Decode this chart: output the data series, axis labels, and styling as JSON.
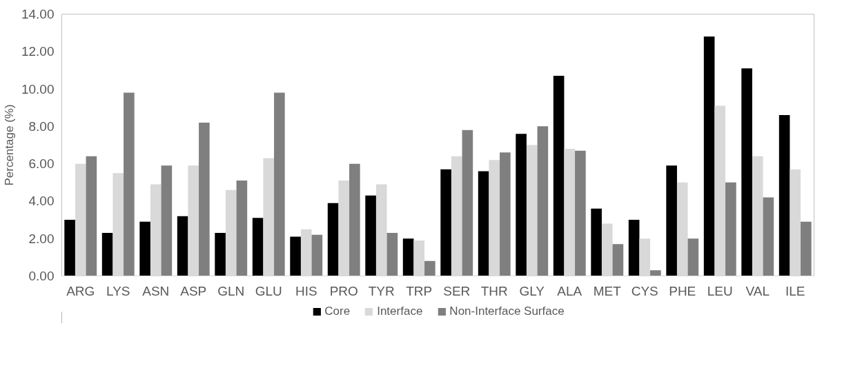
{
  "chart_data": {
    "type": "bar",
    "ylabel": "Percentage (%)",
    "categories": [
      "ARG",
      "LYS",
      "ASN",
      "ASP",
      "GLN",
      "GLU",
      "HIS",
      "PRO",
      "TYR",
      "TRP",
      "SER",
      "THR",
      "GLY",
      "ALA",
      "MET",
      "CYS",
      "PHE",
      "LEU",
      "VAL",
      "ILE"
    ],
    "series": [
      {
        "name": "Core",
        "color": "#000000",
        "values": [
          3.0,
          2.3,
          2.9,
          3.2,
          2.3,
          3.1,
          2.1,
          3.9,
          4.3,
          2.0,
          5.7,
          5.6,
          7.6,
          10.7,
          3.6,
          3.0,
          5.9,
          12.8,
          11.1,
          8.6
        ]
      },
      {
        "name": "Interface",
        "color": "#d9d9d9",
        "values": [
          6.0,
          5.5,
          4.9,
          5.9,
          4.6,
          6.3,
          2.5,
          5.1,
          4.9,
          1.9,
          6.4,
          6.2,
          7.0,
          6.8,
          2.8,
          2.0,
          5.0,
          9.1,
          6.4,
          5.7
        ]
      },
      {
        "name": "Non-Interface Surface",
        "color": "#7f7f7f",
        "values": [
          6.4,
          9.8,
          5.9,
          8.2,
          5.1,
          9.8,
          2.2,
          6.0,
          2.3,
          0.8,
          7.8,
          6.6,
          8.0,
          6.7,
          1.7,
          0.3,
          2.0,
          5.0,
          4.2,
          2.9
        ]
      }
    ],
    "ylim": [
      0,
      14
    ],
    "yticks": [
      {
        "value": 0,
        "label": "0.00"
      },
      {
        "value": 2,
        "label": "2.00"
      },
      {
        "value": 4,
        "label": "4.00"
      },
      {
        "value": 6,
        "label": "6.00"
      },
      {
        "value": 8,
        "label": "8.00"
      },
      {
        "value": 10,
        "label": "10.00"
      },
      {
        "value": 12,
        "label": "12.00"
      },
      {
        "value": 14,
        "label": "14.00"
      }
    ],
    "grid": false,
    "legend": "bottom"
  }
}
